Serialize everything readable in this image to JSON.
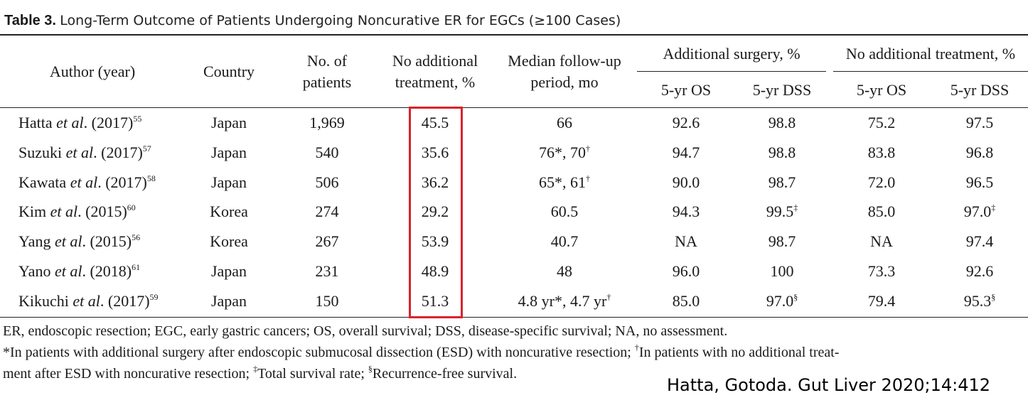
{
  "caption": {
    "label": "Table 3.",
    "text": "Long-Term Outcome of Patients Undergoing Noncurative ER for EGCs (≥100 Cases)"
  },
  "header": {
    "author": "Author (year)",
    "country": "Country",
    "no_patients_l1": "No. of",
    "no_patients_l2": "patients",
    "no_add_l1": "No additional",
    "no_add_l2": "treatment, %",
    "median_l1": "Median follow-up",
    "median_l2": "period, mo",
    "group_surgery": "Additional surgery, %",
    "group_no_treatment": "No additional treatment, %",
    "os": "5-yr OS",
    "dss": "5-yr DSS"
  },
  "rows": [
    {
      "name": "Hatta",
      "etal": "et al",
      "year": ". (2017)",
      "ref": "55",
      "country": "Japan",
      "patients": "1,969",
      "no_add": "45.5",
      "median": "66",
      "median_sup": "",
      "median2": "",
      "median2_sup": "",
      "s_os": "92.6",
      "s_dss": "98.8",
      "s_dss_sup": "",
      "n_os": "75.2",
      "n_dss": "97.5",
      "n_dss_sup": ""
    },
    {
      "name": "Suzuki",
      "etal": "et al",
      "year": ". (2017)",
      "ref": "57",
      "country": "Japan",
      "patients": "540",
      "no_add": "35.6",
      "median": "76*, 70",
      "median_sup": "†",
      "median2": "",
      "median2_sup": "",
      "s_os": "94.7",
      "s_dss": "98.8",
      "s_dss_sup": "",
      "n_os": "83.8",
      "n_dss": "96.8",
      "n_dss_sup": ""
    },
    {
      "name": "Kawata",
      "etal": "et al",
      "year": ". (2017)",
      "ref": "58",
      "country": "Japan",
      "patients": "506",
      "no_add": "36.2",
      "median": "65*, 61",
      "median_sup": "†",
      "median2": "",
      "median2_sup": "",
      "s_os": "90.0",
      "s_dss": "98.7",
      "s_dss_sup": "",
      "n_os": "72.0",
      "n_dss": "96.5",
      "n_dss_sup": ""
    },
    {
      "name": "Kim",
      "etal": "et al",
      "year": ". (2015)",
      "ref": "60",
      "country": "Korea",
      "patients": "274",
      "no_add": "29.2",
      "median": "60.5",
      "median_sup": "",
      "median2": "",
      "median2_sup": "",
      "s_os": "94.3",
      "s_dss": "99.5",
      "s_dss_sup": "‡",
      "n_os": "85.0",
      "n_dss": "97.0",
      "n_dss_sup": "‡"
    },
    {
      "name": "Yang",
      "etal": "et al",
      "year": ". (2015)",
      "ref": "56",
      "country": "Korea",
      "patients": "267",
      "no_add": "53.9",
      "median": "40.7",
      "median_sup": "",
      "median2": "",
      "median2_sup": "",
      "s_os": "NA",
      "s_dss": "98.7",
      "s_dss_sup": "",
      "n_os": "NA",
      "n_dss": "97.4",
      "n_dss_sup": ""
    },
    {
      "name": "Yano",
      "etal": "et al",
      "year": ". (2018)",
      "ref": "61",
      "country": "Japan",
      "patients": "231",
      "no_add": "48.9",
      "median": "48",
      "median_sup": "",
      "median2": "",
      "median2_sup": "",
      "s_os": "96.0",
      "s_dss": "100",
      "s_dss_sup": "",
      "n_os": "73.3",
      "n_dss": "92.6",
      "n_dss_sup": ""
    },
    {
      "name": "Kikuchi",
      "etal": "et al",
      "year": ". (2017)",
      "ref": "59",
      "country": "Japan",
      "patients": "150",
      "no_add": "51.3",
      "median": "4.8 yr*, 4.7 yr",
      "median_sup": "†",
      "median2": "",
      "median2_sup": "",
      "s_os": "85.0",
      "s_dss": "97.0",
      "s_dss_sup": "§",
      "n_os": "79.4",
      "n_dss": "95.3",
      "n_dss_sup": "§"
    }
  ],
  "footnotes": {
    "line1": "ER, endoscopic resection; EGC, early gastric cancers; OS, overall survival; DSS, disease-specific survival; NA, no assessment.",
    "line2a": "*In patients with additional surgery after endoscopic submucosal dissection (ESD) with noncurative resection; ",
    "dagger": "†",
    "line2b": "In patients with no additional treat-",
    "line3a": "ment after ESD with noncurative resection; ",
    "ddagger": "‡",
    "line3b": "Total survival rate; ",
    "section": "§",
    "line3c": "Recurrence-free survival."
  },
  "credit": "Hatta, Gotoda. Gut Liver 2020;14:412",
  "colors": {
    "highlight": "#d9232d",
    "rule": "#222222"
  }
}
